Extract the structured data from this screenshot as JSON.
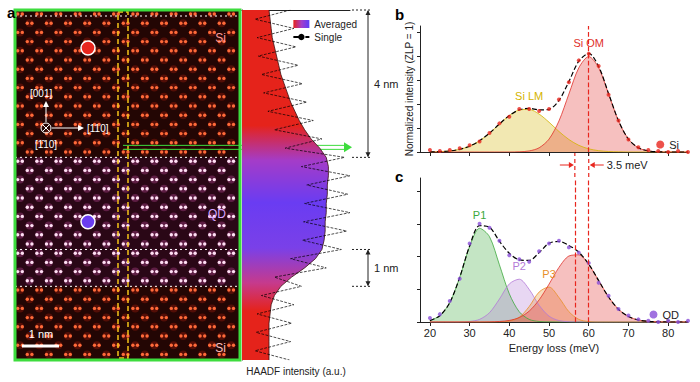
{
  "image": {
    "labels": [
      "Si",
      "QD",
      "Si"
    ],
    "directions": [
      "[001]",
      "[110]",
      "[1̄10]"
    ],
    "scale_bar": "1 nm"
  },
  "chart_data": [
    {
      "type": "area",
      "title": "a",
      "orientation": "horizontal",
      "ylabel": "HAADF intensity (a.u.)",
      "x": [
        0,
        0.25,
        0.5,
        0.75,
        1,
        1.25,
        1.5,
        1.75,
        2,
        2.25,
        2.5,
        2.75,
        3,
        3.25,
        3.5,
        3.75,
        4,
        4.25,
        4.5,
        4.75,
        5,
        5.25,
        5.5,
        5.75,
        6,
        6.25,
        6.5,
        6.75,
        7,
        7.25,
        7.5,
        7.75,
        8,
        8.25,
        8.5,
        8.75,
        9,
        9.25,
        9.5
      ],
      "xlim": [
        0,
        9.5
      ],
      "ylim": [
        0,
        1
      ],
      "tick_labels": false,
      "legend": "upper right",
      "annotations": [
        {
          "text": "4 nm",
          "from": 0,
          "to": 4
        },
        {
          "text": "1 nm",
          "from": 6.5,
          "to": 7.5
        }
      ],
      "series": [
        {
          "name": "Averaged",
          "type": "area",
          "values": [
            0.25,
            0.26,
            0.27,
            0.28,
            0.3,
            0.32,
            0.34,
            0.36,
            0.39,
            0.42,
            0.45,
            0.49,
            0.53,
            0.58,
            0.64,
            0.72,
            0.78,
            0.8,
            0.8,
            0.79,
            0.79,
            0.78,
            0.78,
            0.77,
            0.77,
            0.76,
            0.74,
            0.68,
            0.58,
            0.46,
            0.36,
            0.3,
            0.27,
            0.26,
            0.25,
            0.25,
            0.25,
            0.25,
            0.25
          ]
        },
        {
          "name": "Single",
          "type": "line",
          "color": "#000000",
          "line_style": "dashed",
          "values": [
            0.45,
            0.12,
            0.48,
            0.14,
            0.5,
            0.15,
            0.52,
            0.18,
            0.56,
            0.2,
            0.6,
            0.24,
            0.66,
            0.3,
            0.74,
            0.4,
            0.95,
            0.55,
            1.0,
            0.6,
            0.98,
            0.58,
            1.0,
            0.57,
            0.97,
            0.56,
            0.92,
            0.45,
            0.78,
            0.3,
            0.55,
            0.18,
            0.48,
            0.14,
            0.46,
            0.13,
            0.45,
            0.12,
            0.44
          ]
        }
      ]
    },
    {
      "type": "line",
      "title": "b",
      "ylabel": "Normalized intensity (ZLP = 1)",
      "x": [
        20,
        22.5,
        25,
        27.5,
        30,
        32.5,
        35,
        37.5,
        40,
        42.5,
        45,
        47.5,
        50,
        52.5,
        55,
        57.5,
        60,
        62.5,
        65,
        67.5,
        70,
        72.5,
        75,
        77.5,
        80,
        82.5,
        85
      ],
      "xlim": [
        17.5,
        85
      ],
      "xticks": [
        20,
        30,
        40,
        50,
        60,
        70,
        80
      ],
      "ylim": [
        0,
        1.32
      ],
      "yticks": [
        0,
        0.25,
        0.5,
        0.75,
        1,
        1.25
      ],
      "tick_labels": false,
      "legend": "lower right",
      "series": [
        {
          "name": "Si LM",
          "type": "area",
          "color": "#d4b400",
          "values": [
            0.001,
            0.004,
            0.011,
            0.028,
            0.061,
            0.117,
            0.197,
            0.293,
            0.382,
            0.44,
            0.446,
            0.397,
            0.312,
            0.215,
            0.131,
            0.07,
            0.033,
            0.014,
            0.005,
            0.002,
            0,
            0,
            0,
            0,
            0,
            0,
            0
          ]
        },
        {
          "name": "Si OM",
          "type": "area",
          "color": "#e0302a",
          "values": [
            0,
            0,
            0,
            0,
            0,
            0,
            0,
            0,
            0,
            0.002,
            0.011,
            0.044,
            0.135,
            0.325,
            0.607,
            0.882,
            1,
            0.882,
            0.607,
            0.325,
            0.135,
            0.044,
            0.011,
            0.002,
            0,
            0,
            0
          ]
        },
        {
          "type": "line",
          "color": "#000000",
          "line_style": "dashed",
          "values": [
            0.001,
            0.004,
            0.011,
            0.028,
            0.061,
            0.117,
            0.197,
            0.293,
            0.382,
            0.442,
            0.457,
            0.441,
            0.447,
            0.54,
            0.738,
            0.952,
            1.033,
            0.896,
            0.612,
            0.327,
            0.135,
            0.044,
            0.011,
            0.002,
            0,
            0,
            0
          ]
        },
        {
          "name": "Si",
          "type": "scatter",
          "marker": "circle",
          "color": "#e8261e",
          "values": [
            0.02,
            0.01,
            0.02,
            0.04,
            0.07,
            0.11,
            0.2,
            0.3,
            0.37,
            0.45,
            0.45,
            0.43,
            0.45,
            0.55,
            0.73,
            0.96,
            1.03,
            0.9,
            0.6,
            0.33,
            0.13,
            0.05,
            0.02,
            0.01,
            0,
            0.01,
            0
          ]
        }
      ]
    },
    {
      "type": "line",
      "title": "c",
      "xlabel": "Energy loss (meV)",
      "x": [
        20,
        22.5,
        25,
        27.5,
        30,
        32.5,
        35,
        37.5,
        40,
        42.5,
        45,
        47.5,
        50,
        52.5,
        55,
        57.5,
        60,
        62.5,
        65,
        67.5,
        70,
        72.5,
        75,
        77.5,
        80,
        82.5,
        85
      ],
      "xlim": [
        17.5,
        85
      ],
      "xticks": [
        20,
        30,
        40,
        50,
        60,
        70,
        80
      ],
      "ylim": [
        0,
        1.1
      ],
      "yticks": [
        0,
        0.25,
        0.5,
        0.75,
        1
      ],
      "tick_labels": "x",
      "legend": "lower right",
      "annotations": [
        {
          "text": "3.5 meV",
          "x": [
            56.5,
            60
          ]
        }
      ],
      "series": [
        {
          "name": "P1",
          "type": "area",
          "color": "#3ca83c",
          "values": [
            0.011,
            0.048,
            0.148,
            0.341,
            0.577,
            0.716,
            0.652,
            0.437,
            0.215,
            0.078,
            0.02,
            0.004,
            0.001,
            0,
            0,
            0,
            0,
            0,
            0,
            0,
            0,
            0,
            0,
            0,
            0,
            0,
            0
          ]
        },
        {
          "name": "P2",
          "type": "area",
          "color": "#b47ad8",
          "values": [
            0,
            0,
            0,
            0,
            0.004,
            0.02,
            0.071,
            0.175,
            0.291,
            0.327,
            0.249,
            0.128,
            0.045,
            0.011,
            0.002,
            0,
            0,
            0,
            0,
            0,
            0,
            0,
            0,
            0,
            0,
            0,
            0
          ]
        },
        {
          "name": "P3",
          "type": "area",
          "color": "#e8902a",
          "values": [
            0,
            0,
            0,
            0,
            0,
            0,
            0,
            0.001,
            0.007,
            0.036,
            0.118,
            0.229,
            0.267,
            0.187,
            0.079,
            0.02,
            0.003,
            0,
            0,
            0,
            0,
            0,
            0,
            0,
            0,
            0,
            0
          ]
        },
        {
          "type": "area",
          "color": "#e0302a",
          "values": [
            0,
            0,
            0,
            0,
            0,
            0,
            0.001,
            0.004,
            0.012,
            0.034,
            0.083,
            0.169,
            0.289,
            0.417,
            0.504,
            0.513,
            0.439,
            0.316,
            0.191,
            0.097,
            0.042,
            0.015,
            0.005,
            0.001,
            0,
            0,
            0
          ]
        },
        {
          "type": "line",
          "color": "#000000",
          "line_style": "dashed",
          "values": [
            0.011,
            0.048,
            0.148,
            0.341,
            0.581,
            0.736,
            0.724,
            0.617,
            0.525,
            0.475,
            0.47,
            0.53,
            0.602,
            0.615,
            0.585,
            0.533,
            0.442,
            0.316,
            0.191,
            0.097,
            0.042,
            0.015,
            0.005,
            0.001,
            0,
            0,
            0
          ]
        },
        {
          "name": "QD",
          "type": "scatter",
          "marker": "circle",
          "color": "#8a4fd8",
          "values": [
            0.03,
            0.06,
            0.16,
            0.33,
            0.6,
            0.75,
            0.72,
            0.62,
            0.51,
            0.48,
            0.46,
            0.54,
            0.6,
            0.62,
            0.57,
            0.53,
            0.45,
            0.3,
            0.2,
            0.1,
            0.05,
            0.02,
            0.01,
            0,
            0.01,
            0,
            0.01
          ]
        }
      ]
    }
  ]
}
